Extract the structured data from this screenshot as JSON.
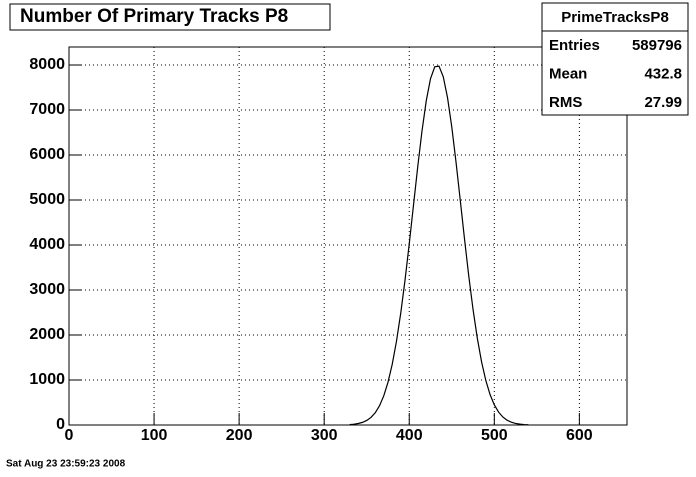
{
  "chart_data": {
    "type": "line",
    "title": "Number Of Primary Tracks P8",
    "footer": "Sat Aug 23 23:59:23 2008",
    "stats": {
      "name": "PrimeTracksP8",
      "rows": [
        {
          "label": "Entries",
          "value": 589796
        },
        {
          "label": "Mean",
          "value": 432.8
        },
        {
          "label": "RMS",
          "value": 27.99
        }
      ]
    },
    "series": [
      {
        "name": "PrimeTracksP8",
        "color": "#000000",
        "x": [
          330,
          335,
          340,
          345,
          350,
          355,
          360,
          365,
          370,
          375,
          380,
          385,
          390,
          395,
          400,
          405,
          410,
          415,
          420,
          425,
          430,
          435,
          440,
          445,
          450,
          455,
          460,
          465,
          470,
          475,
          480,
          485,
          490,
          495,
          500,
          505,
          510,
          515,
          520,
          525,
          530,
          535,
          540
        ],
        "values": [
          9,
          18,
          33,
          58,
          101,
          168,
          272,
          426,
          645,
          949,
          1351,
          1862,
          2486,
          3214,
          4026,
          4886,
          5740,
          6534,
          7206,
          7696,
          7960,
          7975,
          7739,
          7275,
          6624,
          5841,
          4990,
          4128,
          3308,
          2568,
          1930,
          1406,
          991,
          677,
          448,
          287,
          178,
          107,
          62,
          35,
          19,
          10,
          5
        ]
      }
    ],
    "xlim": [
      0,
      656
    ],
    "ylim": [
      0,
      8400
    ],
    "xticks": [
      0,
      100,
      200,
      300,
      400,
      500,
      600
    ],
    "yticks": [
      0,
      1000,
      2000,
      3000,
      4000,
      5000,
      6000,
      7000,
      8000
    ],
    "grid": true
  }
}
